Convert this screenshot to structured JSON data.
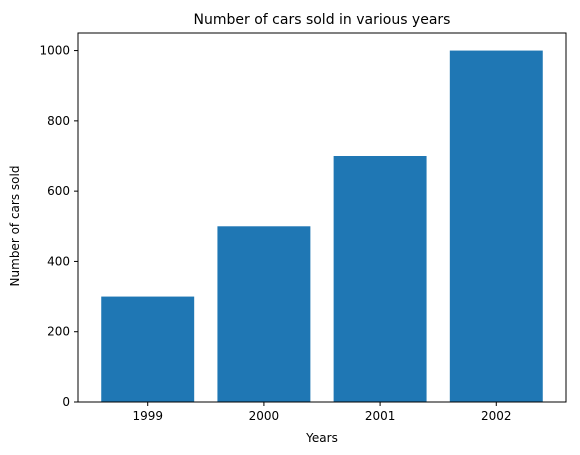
{
  "chart_data": {
    "type": "bar",
    "title": "Number of cars sold in various years",
    "xlabel": "Years",
    "ylabel": "Number of cars sold",
    "categories": [
      "1999",
      "2000",
      "2001",
      "2002"
    ],
    "values": [
      300,
      500,
      700,
      1000
    ],
    "ylim": [
      0,
      1050
    ],
    "yticks": [
      0,
      200,
      400,
      600,
      800,
      1000
    ],
    "grid": false,
    "legend": "none",
    "bar_color": "#1f77b4"
  }
}
